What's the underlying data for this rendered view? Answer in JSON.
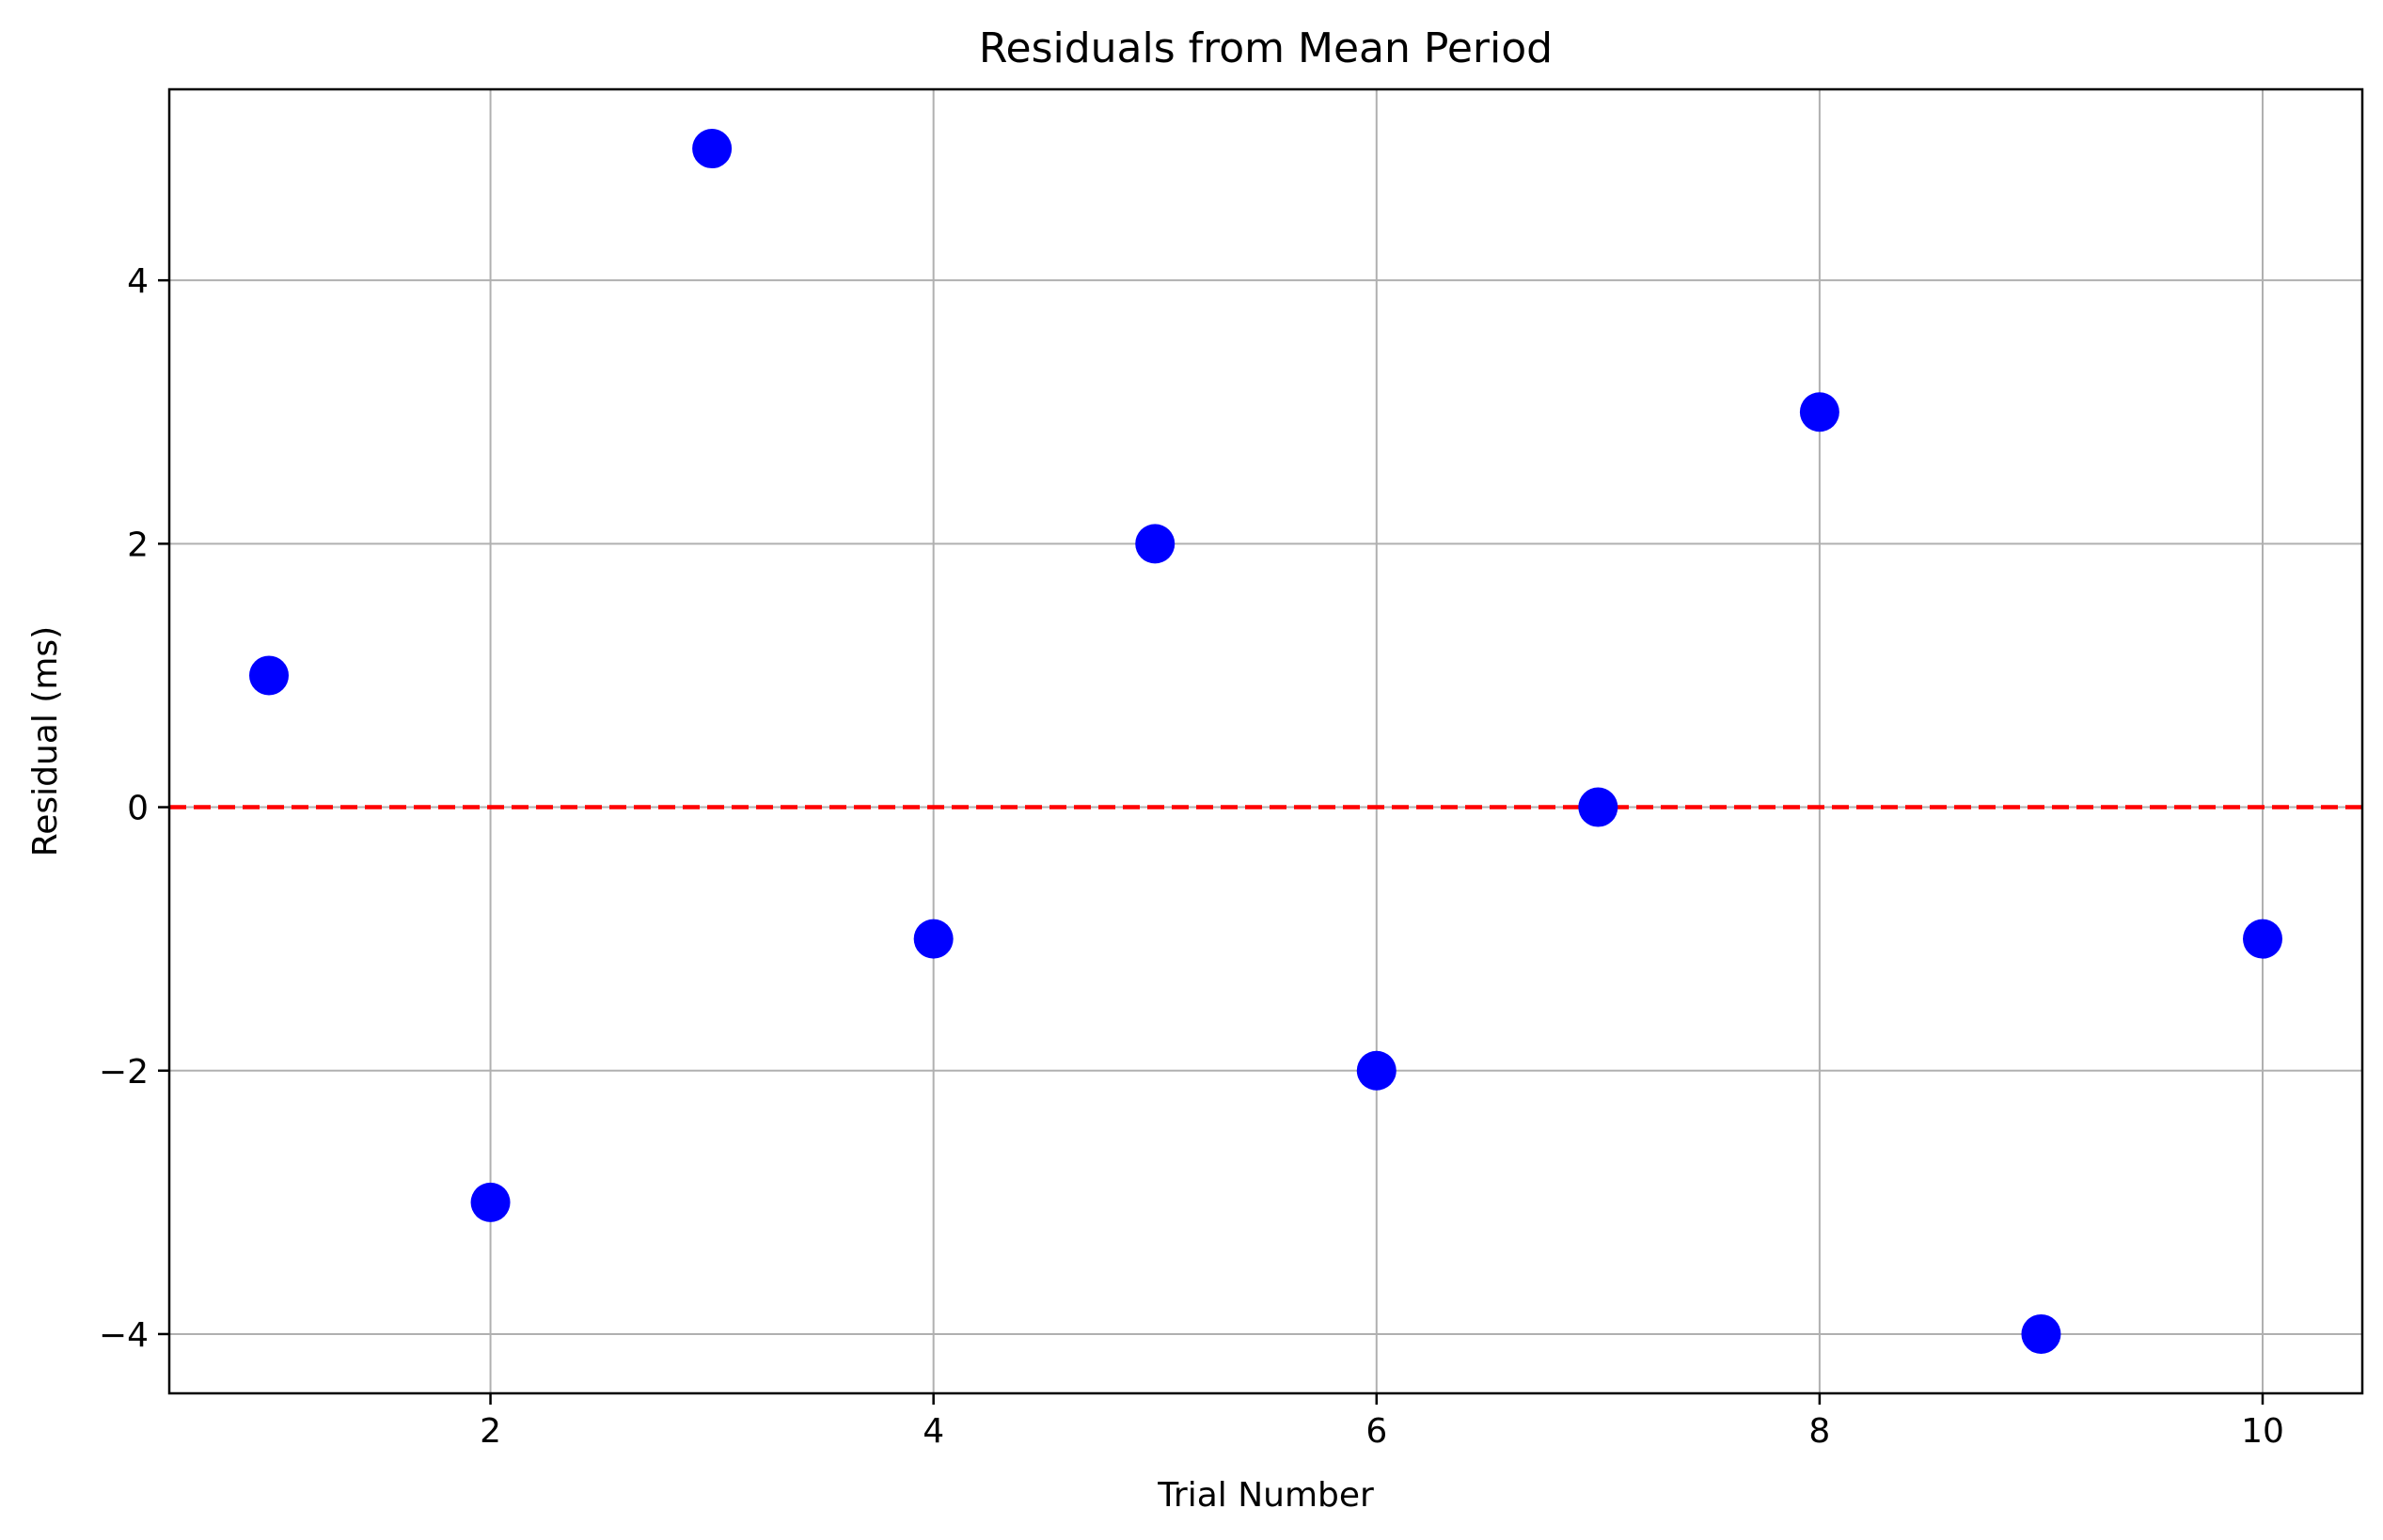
{
  "chart_data": {
    "type": "scatter",
    "title": "Residuals from Mean Period",
    "xlabel": "Trial Number",
    "ylabel": "Residual (ms)",
    "x": [
      1,
      2,
      3,
      4,
      5,
      6,
      7,
      8,
      9,
      10
    ],
    "y": [
      1,
      -3,
      5,
      -1,
      2,
      -2,
      0,
      3,
      -4,
      -1
    ],
    "xlim": [
      0.55,
      10.45
    ],
    "ylim": [
      -4.45,
      5.45
    ],
    "x_ticks": [
      2,
      4,
      6,
      8,
      10
    ],
    "x_tick_labels": [
      "2",
      "4",
      "6",
      "8",
      "10"
    ],
    "y_ticks": [
      -4,
      -2,
      0,
      2,
      4
    ],
    "y_tick_labels": [
      "−4",
      "−2",
      "0",
      "2",
      "4"
    ],
    "grid": true,
    "point_color": "#0000ff",
    "reference_line": {
      "y": 0,
      "style": "dashed",
      "color": "#ff0000"
    },
    "grid_color": "#b0b0b0"
  }
}
